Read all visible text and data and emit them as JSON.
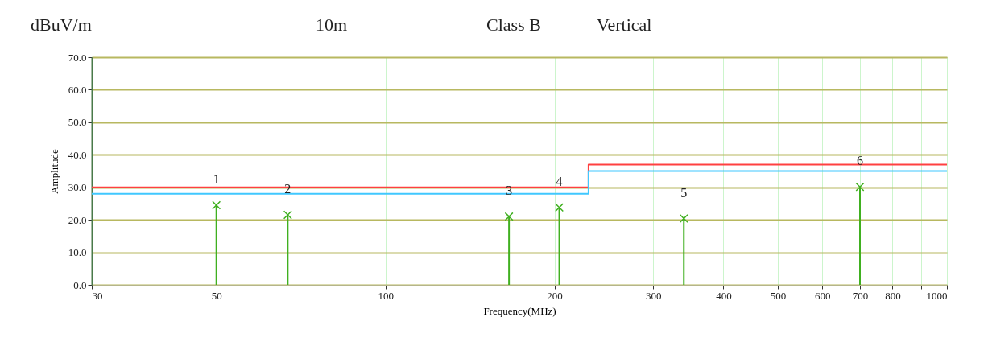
{
  "chart_data": {
    "type": "lollipop",
    "title": "dBuV/m",
    "xlabel": "Frequency(MHz)",
    "ylabel": "Amplitude",
    "annotations": [
      "10m",
      "Class B",
      "Vertical",
      {
        "text": "1",
        "x": 50,
        "y": 24.5
      },
      {
        "text": "2",
        "x": 67,
        "y": 21.5
      },
      {
        "text": "3",
        "x": 166,
        "y": 21
      },
      {
        "text": "4",
        "x": 204,
        "y": 23.8
      },
      {
        "text": "5",
        "x": 340,
        "y": 20.4
      },
      {
        "text": "6",
        "x": 700,
        "y": 30.1
      }
    ],
    "series": [
      {
        "type": "step",
        "color": "#ff4040",
        "x": [
          30,
          230,
          1000
        ],
        "values": [
          30,
          37,
          37
        ]
      },
      {
        "type": "step",
        "color": "#40c8ff",
        "x": [
          30,
          230,
          1000
        ],
        "values": [
          28,
          35,
          35
        ]
      },
      {
        "type": "lollipop",
        "marker": "cross",
        "color": "#40b020",
        "x": [
          50,
          67,
          166,
          204,
          340,
          700
        ],
        "values": [
          24.5,
          21.5,
          21,
          23.8,
          20.4,
          30.1
        ]
      }
    ],
    "log": "x",
    "grid": true,
    "xlim": [
      30,
      1000
    ],
    "xticks": [
      30,
      50,
      100,
      200,
      300,
      400,
      500,
      600,
      700,
      800,
      {
        "value": 900,
        "label": null
      },
      1000
    ],
    "ylim": [
      0,
      70
    ],
    "yticks": [
      {
        "value": 0,
        "label": "0.0"
      },
      {
        "value": 10,
        "label": "10.0"
      },
      {
        "value": 20,
        "label": "20.0"
      },
      {
        "value": 30,
        "label": "30.0"
      },
      {
        "value": 40,
        "label": "40.0"
      },
      {
        "value": 50,
        "label": "50.0"
      },
      {
        "value": 60,
        "label": "60.0"
      },
      {
        "value": 70,
        "label": "70.0"
      }
    ]
  }
}
